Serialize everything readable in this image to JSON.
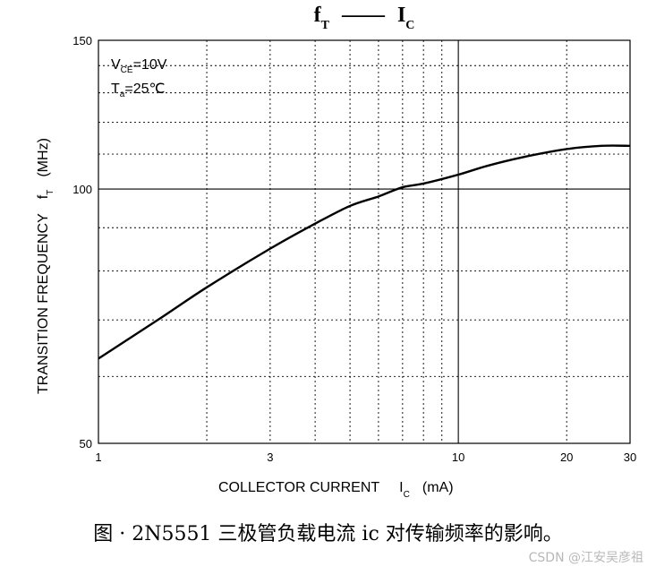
{
  "chart_data": {
    "type": "line",
    "title": {
      "symbol": "f",
      "sub": "T",
      "dash": "——",
      "symbol2": "I",
      "sub2": "C"
    },
    "x_scale": "log",
    "y_scale": "log",
    "xlim": [
      1,
      30
    ],
    "ylim": [
      50,
      150
    ],
    "x_ticks": [
      1,
      3,
      10,
      20,
      30
    ],
    "y_ticks": [
      50,
      100,
      150
    ],
    "xlabel": {
      "text": "COLLECTOR CURRENT",
      "symbol": "I",
      "sub": "C",
      "unit": "(mA)"
    },
    "ylabel": {
      "text": "TRANSITION FREQUENCY",
      "symbol": "f",
      "sub": "T",
      "unit": "(MHz)"
    },
    "annotations": [
      {
        "pre": "V",
        "sub": "CE",
        "post": "=10V"
      },
      {
        "pre": "T",
        "sub": "a",
        "post": "=25℃"
      }
    ],
    "grid": "dotted minor, solid at 10 mA and 100 MHz",
    "series": [
      {
        "x": [
          1,
          1.5,
          2,
          3,
          4,
          5,
          6,
          7,
          8,
          10,
          12,
          15,
          20,
          25,
          30
        ],
        "y": [
          63,
          70.5,
          76.5,
          85,
          91,
          95.5,
          98,
          100.5,
          101.5,
          104,
          106.5,
          109,
          111.5,
          112.5,
          112.5
        ]
      }
    ]
  },
  "caption": "图 ·  2N5551 三极管负载电流 ic 对传输频率的影响。",
  "watermark": "CSDN @江安吴彦祖"
}
